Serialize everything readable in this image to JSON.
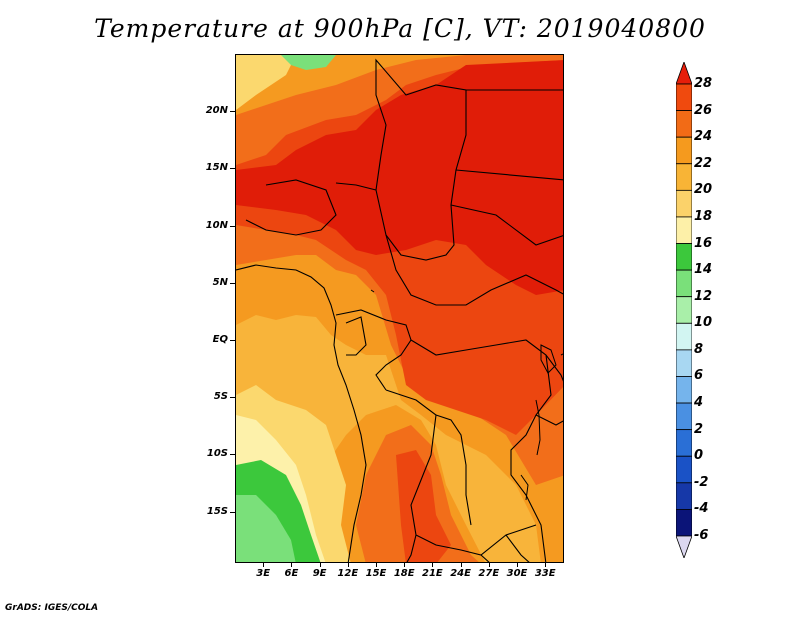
{
  "title": "Temperature at 900hPa [C], VT: 2019040800",
  "credit": "GrADS: IGES/COLA",
  "map": {
    "lat_labels": [
      "20N",
      "15N",
      "10N",
      "5N",
      "EQ",
      "5S",
      "10S",
      "15S"
    ],
    "lat_values": [
      20,
      15,
      10,
      5,
      0,
      -5,
      -10,
      -15
    ],
    "lon_labels": [
      "3E",
      "6E",
      "9E",
      "12E",
      "15E",
      "18E",
      "21E",
      "24E",
      "27E",
      "30E",
      "33E"
    ],
    "lon_values": [
      3,
      6,
      9,
      12,
      15,
      18,
      21,
      24,
      27,
      30,
      33
    ],
    "lat_range": [
      -19.5,
      25
    ],
    "lon_range": [
      0,
      35
    ],
    "variable": "Temperature",
    "level": "900hPa",
    "units": "C"
  },
  "colorbar": {
    "labels": [
      "28",
      "26",
      "24",
      "22",
      "20",
      "18",
      "16",
      "14",
      "12",
      "10",
      "8",
      "6",
      "4",
      "2",
      "0",
      "-2",
      "-4",
      "-6"
    ],
    "values": [
      28,
      26,
      24,
      22,
      20,
      18,
      16,
      14,
      12,
      10,
      8,
      6,
      4,
      2,
      0,
      -2,
      -4,
      -6
    ],
    "colors": [
      "#e61e0a",
      "#f04a0e",
      "#f26b16",
      "#f59a1e",
      "#f8b436",
      "#fbd26a",
      "#fdf0a8",
      "#3cc83c",
      "#7ae07a",
      "#a9efa9",
      "#d2f5f2",
      "#a8d7f2",
      "#75b4ec",
      "#4a90e2",
      "#2a6fd6",
      "#1a52c6",
      "#1638a8",
      "#0b1478",
      "#dcd8f0"
    ]
  },
  "fields": {
    "c28": "#e01d08",
    "c26": "#ec4610",
    "c24": "#f26e1a",
    "c22": "#f59a20",
    "c20": "#f8b43a",
    "c18": "#fbd86e",
    "c16": "#fdf1aa",
    "c14": "#3cc83c",
    "c12": "#7ae07a"
  }
}
